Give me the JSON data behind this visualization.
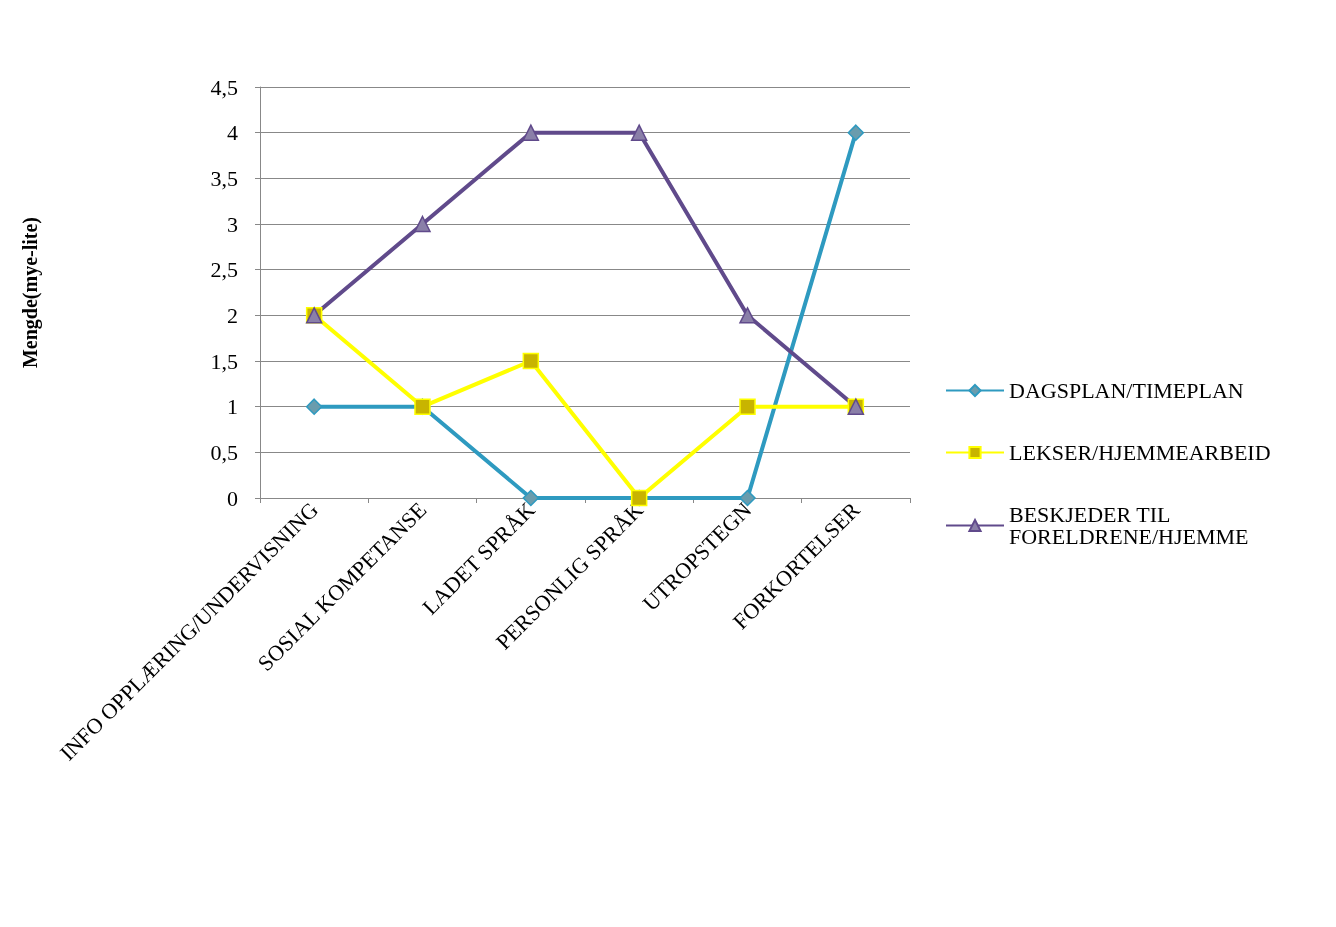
{
  "chart_data": {
    "type": "line",
    "ylabel": "Mengde(mye-lite)",
    "categories": [
      "INFO OPPLÆRING/UNDERVISNING",
      "SOSIAL KOMPETANSE",
      "LADET SPRÅK",
      "PERSONLIG SPRÅK",
      "UTROPSTEGN",
      "FORKORTELSER"
    ],
    "series": [
      {
        "name": "DAGSPLAN/TIMEPLAN",
        "color": "#2e9ac0",
        "marker": "diamond",
        "values": [
          1,
          1,
          0,
          0,
          0,
          4
        ]
      },
      {
        "name": "LEKSER/HJEMMEARBEID",
        "color": "#ffff00",
        "marker": "square",
        "values": [
          2,
          1,
          1.5,
          0,
          1,
          1
        ]
      },
      {
        "name": "BESKJEDER TIL FORELDRENE/HJEMME",
        "color": "#604a8b",
        "marker": "triangle",
        "values": [
          2,
          3,
          4,
          4,
          2,
          1
        ]
      }
    ],
    "ylim": [
      0,
      4.5
    ],
    "yticks": [
      0,
      {
        "value": 0.5,
        "label": "0,5"
      },
      1,
      {
        "value": 1.5,
        "label": "1,5"
      },
      2,
      {
        "value": 2.5,
        "label": "2,5"
      },
      3,
      {
        "value": 3.5,
        "label": "3,5"
      },
      4,
      {
        "value": 4.5,
        "label": "4,5"
      }
    ],
    "grid": "y",
    "legend": "right"
  }
}
